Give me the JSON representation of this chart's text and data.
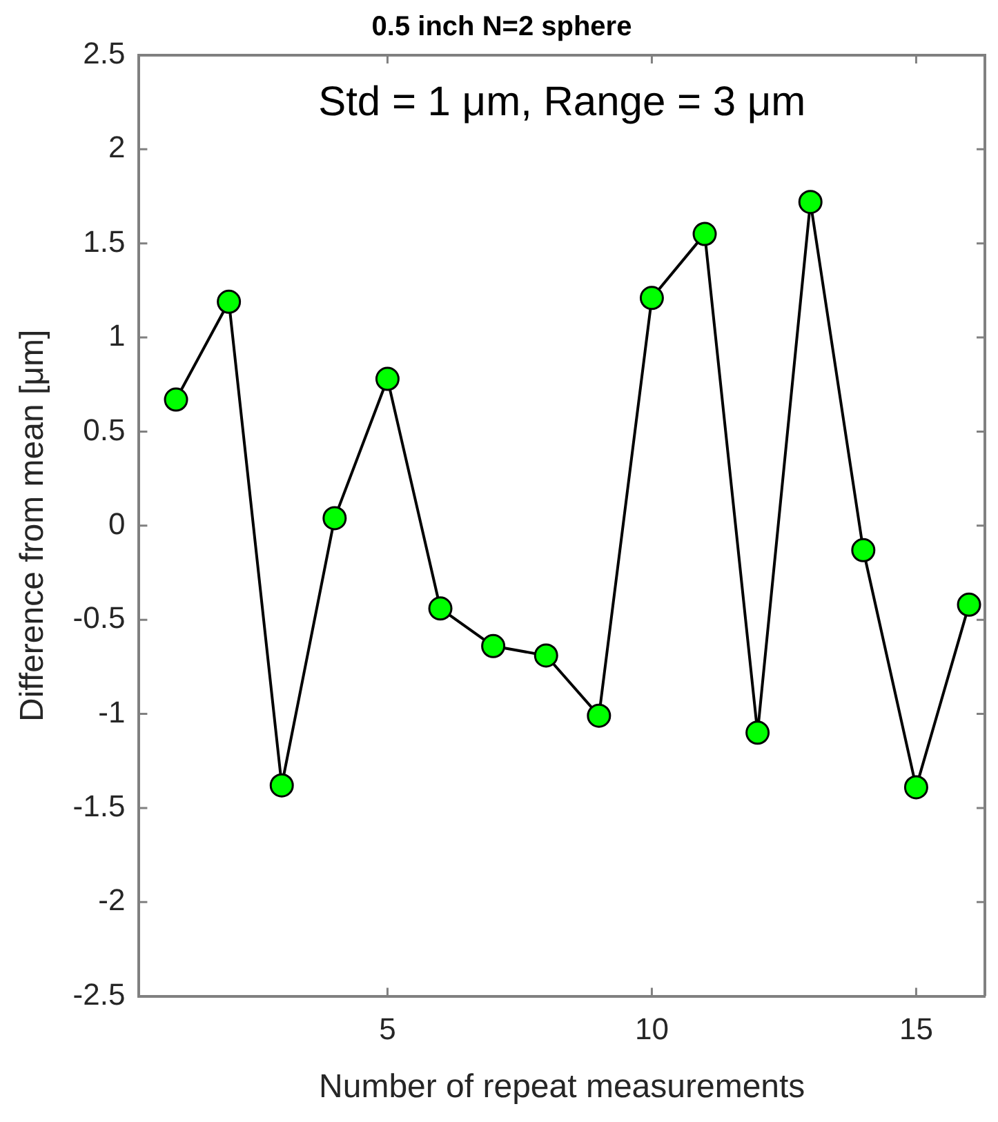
{
  "chart_data": {
    "type": "line",
    "title": "0.5 inch N=2 sphere",
    "xlabel": "Number of repeat measurements",
    "ylabel": "Difference from mean [μm]",
    "annotations": [
      "Std = 1 μm, Range = 3 μm"
    ],
    "x": [
      1,
      2,
      3,
      4,
      5,
      6,
      7,
      8,
      9,
      10,
      11,
      12,
      13,
      14,
      15,
      16
    ],
    "series": [
      {
        "color": "#00ff00",
        "values": [
          0.67,
          1.19,
          -1.38,
          0.04,
          0.78,
          -0.44,
          -0.64,
          -0.69,
          -1.01,
          1.21,
          1.55,
          -1.1,
          1.72,
          -0.13,
          -1.39,
          -0.42
        ]
      }
    ],
    "xlim": [
      0.3,
      16.3
    ],
    "xticks": [
      5,
      10,
      15
    ],
    "ylim": [
      -2.5,
      2.5
    ],
    "yticks": [
      -2.5,
      -2,
      -1.5,
      -1,
      -0.5,
      0,
      0.5,
      1,
      1.5,
      2,
      2.5
    ],
    "marker": "circle",
    "line_style": "solid",
    "grid": false,
    "legend": false
  }
}
